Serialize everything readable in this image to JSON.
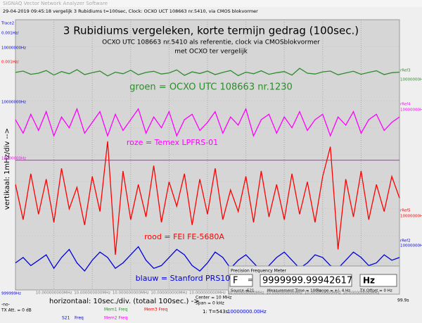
{
  "window": {
    "app_title": "SIGNAQ Vector Network Analyzer Software",
    "info": "29-04-2019   09:45:18   vergelijk 3 Rubidiums t=100sec, Clock: OCXO UCT 108663 nr.5410, via CMOS blokvormer"
  },
  "chart_data": {
    "type": "line",
    "title": "3 Rubidiums vergeleken, korte termijn gedrag (100sec.)",
    "subtitle": [
      "OCXO UTC 108663 nr.5410 als referentie,  clock via CMOSblokvormer",
      "met OCXO ter vergelijk"
    ],
    "y_label": "vertikaal: 1mHz/div -->",
    "x_label": "horizontaal: 10sec./div. (totaal 100sec.) ->",
    "xlim": [
      0,
      100
    ],
    "ylim": [
      0,
      10
    ],
    "xticks": [
      {
        "value": 10,
        "label": "10.000000000MHz"
      },
      {
        "value": 20,
        "label": "10.000000000MHz"
      },
      {
        "value": 30,
        "label": "10.000000000MHz"
      },
      {
        "value": 40,
        "label": "10.000000000MHz"
      },
      {
        "value": 50,
        "label": "10.000000000MHz"
      },
      {
        "value": 60,
        "label": "10.000000000MHz"
      },
      {
        "value": 70,
        "label": "10.000000000MHz"
      },
      {
        "value": 80,
        "label": "10.000000000MHz"
      },
      {
        "value": 90,
        "label": "10.000000000MHz"
      }
    ],
    "yticks": [
      1,
      2,
      3,
      4,
      5,
      6,
      7,
      8,
      9
    ],
    "grid": true,
    "x": [
      0,
      2,
      4,
      6,
      8,
      10,
      12,
      14,
      16,
      18,
      20,
      22,
      24,
      26,
      28,
      30,
      32,
      34,
      36,
      38,
      40,
      42,
      44,
      46,
      48,
      50,
      52,
      54,
      56,
      58,
      60,
      62,
      64,
      66,
      68,
      70,
      72,
      74,
      76,
      78,
      80,
      82,
      84,
      86,
      88,
      90,
      92,
      94,
      96,
      98,
      100
    ],
    "series": [
      {
        "name": "groen = OCXO UTC 108663 nr.1230",
        "color": "#2e8b2e",
        "values": [
          8.05,
          8.1,
          7.98,
          8.02,
          8.12,
          7.95,
          8.08,
          8.0,
          8.15,
          7.97,
          8.04,
          8.1,
          7.92,
          8.06,
          8.0,
          8.13,
          7.96,
          8.05,
          8.09,
          7.99,
          8.03,
          8.14,
          7.94,
          8.07,
          8.01,
          8.1,
          7.97,
          8.05,
          8.12,
          7.93,
          8.06,
          8.0,
          8.11,
          7.98,
          8.04,
          8.08,
          7.95,
          8.2,
          8.02,
          7.99,
          8.07,
          8.1,
          7.96,
          8.03,
          8.09,
          7.98,
          8.05,
          8.11,
          7.97,
          8.04,
          8.06
        ]
      },
      {
        "name": "roze = Temex LPFRS-01",
        "color": "#ff00ff",
        "values": [
          6.3,
          5.8,
          6.5,
          5.9,
          6.6,
          5.7,
          6.4,
          6.0,
          6.7,
          5.8,
          6.2,
          6.6,
          5.7,
          6.5,
          5.9,
          6.3,
          6.7,
          5.8,
          6.4,
          6.0,
          6.6,
          5.7,
          6.3,
          6.5,
          5.9,
          6.2,
          6.6,
          5.8,
          6.4,
          6.1,
          6.7,
          5.7,
          6.3,
          6.5,
          5.8,
          6.4,
          6.0,
          6.6,
          5.9,
          6.3,
          6.5,
          5.7,
          6.4,
          6.1,
          6.6,
          5.8,
          6.3,
          6.5,
          5.9,
          6.2,
          6.4
        ]
      },
      {
        "name": "rood = FEI FE-5680A",
        "color": "#ff0000",
        "values": [
          3.9,
          2.6,
          4.3,
          2.8,
          4.1,
          2.5,
          4.5,
          3.0,
          3.8,
          2.4,
          4.2,
          2.9,
          5.5,
          1.3,
          4.4,
          2.6,
          3.9,
          2.7,
          4.6,
          2.5,
          4.0,
          3.1,
          4.3,
          2.4,
          4.1,
          2.8,
          4.5,
          2.6,
          3.7,
          2.9,
          4.2,
          2.5,
          4.4,
          2.7,
          3.9,
          2.6,
          4.3,
          2.8,
          4.0,
          2.5,
          4.2,
          5.3,
          1.5,
          4.1,
          2.7,
          4.4,
          2.6,
          3.9,
          2.9,
          4.2,
          3.4
        ]
      },
      {
        "name": "blauw = Stanford PRS10",
        "color": "#0000e0",
        "values": [
          1.0,
          1.2,
          0.9,
          1.1,
          1.3,
          0.8,
          1.2,
          1.5,
          1.0,
          0.7,
          1.1,
          1.4,
          1.2,
          0.8,
          1.0,
          1.3,
          1.6,
          1.1,
          0.8,
          0.9,
          1.2,
          1.5,
          1.3,
          0.9,
          0.7,
          1.0,
          1.4,
          1.2,
          0.8,
          1.1,
          1.3,
          1.0,
          0.7,
          0.9,
          1.2,
          1.4,
          1.1,
          0.8,
          1.0,
          1.3,
          1.2,
          0.9,
          0.8,
          1.1,
          1.4,
          1.2,
          0.9,
          1.0,
          1.3,
          1.1,
          1.2
        ]
      }
    ],
    "ref_lines": [
      {
        "value": 4.8,
        "color": "#ff00ff"
      }
    ],
    "left_labels": [
      {
        "text": "Trace2",
        "color": "#0000e0"
      },
      {
        "text": "0.001Hz/",
        "color": "#0000e0"
      },
      {
        "text": "10000000Hz",
        "color": "#0000e0"
      },
      {
        "text": "0.001Hz/",
        "color": "#ff0000"
      },
      {
        "text": "10000000Hz",
        "color": "#0000e0"
      },
      {
        "text": "10000000Hz",
        "color": "#ff00ff"
      },
      {
        "text": "999999Hz",
        "color": "#0000e0"
      }
    ],
    "right_labels": [
      {
        "text": "rRef3",
        "color": "#2e8b2e"
      },
      {
        "text": "10000000Hz",
        "color": "#2e8b2e"
      },
      {
        "text": "rRef4",
        "color": "#ff00ff"
      },
      {
        "text": "10000000Hz",
        "color": "#ff00ff"
      },
      {
        "text": "rRef5",
        "color": "#ff0000"
      },
      {
        "text": "10000000Hz",
        "color": "#ff0000"
      },
      {
        "text": "rRef2",
        "color": "#0000e0"
      },
      {
        "text": "10000000Hz",
        "color": "#0000e0"
      }
    ],
    "x_end": "99.9s"
  },
  "status": {
    "center": "Center = 10 MHz",
    "span": "Span = 0 kHz",
    "marker": "1: T=543s",
    "marker_value": "10000000.00Hz",
    "att_top": "-no-",
    "att": "TX Att. = 0 dB",
    "legend": [
      {
        "text": "Mem1 Freq",
        "color": "#2e8b2e"
      },
      {
        "text": "Mem3 Freq",
        "color": "#ff0000"
      },
      {
        "text": "S21",
        "color": "#0000e0"
      },
      {
        "text": "Freq",
        "color": "#0000e0"
      },
      {
        "text": "Mem2 Freq",
        "color": "#ff00ff"
      }
    ]
  },
  "meter": {
    "title": "Precision Frequency Meter",
    "symbol": "F",
    "eq": "=",
    "reading": "9999999.99942617",
    "unit": "Hz",
    "source": "Source =",
    "source_value": "S21",
    "time": "Measurement Time = 100 s",
    "range": "Range = +/- 4 Hz",
    "offset": "TX Offset = 0 Hz"
  }
}
